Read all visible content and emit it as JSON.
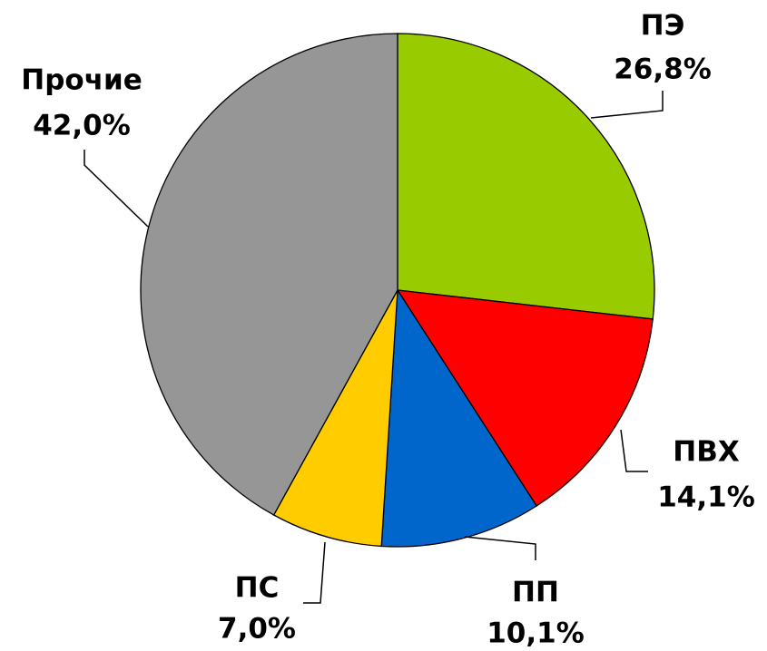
{
  "chart_data": {
    "type": "pie",
    "categories": [
      "ПЭ",
      "ПВХ",
      "ПП",
      "ПС",
      "Прочие"
    ],
    "values": [
      26.8,
      14.1,
      10.1,
      7.0,
      42.0
    ],
    "value_labels": [
      "26,8%",
      "14,1%",
      "10,1%",
      "7,0%",
      "42,0%"
    ],
    "colors": [
      "#99cc00",
      "#ff0000",
      "#0066cc",
      "#ffcc00",
      "#969696"
    ]
  }
}
